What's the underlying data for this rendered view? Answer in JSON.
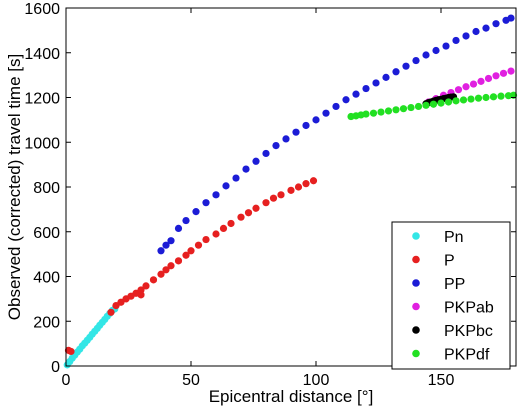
{
  "chart_data": {
    "type": "scatter",
    "xlabel": "Epicentral distance [°]",
    "ylabel": "Observed (corrected) travel time [s]",
    "xlim": [
      0,
      180
    ],
    "ylim": [
      0,
      1600
    ],
    "xticks": [
      0,
      50,
      100,
      150
    ],
    "yticks": [
      0,
      200,
      400,
      600,
      800,
      1000,
      1200,
      1400,
      1600
    ],
    "grid": false,
    "legend_position": "bottom-right",
    "series": [
      {
        "name": "Pn",
        "color": "#33e6e6",
        "points": [
          [
            0.5,
            5
          ],
          [
            1.5,
            20
          ],
          [
            2.5,
            35
          ],
          [
            3.5,
            48
          ],
          [
            4.5,
            62
          ],
          [
            5.5,
            75
          ],
          [
            6.5,
            90
          ],
          [
            7.5,
            102
          ],
          [
            8.5,
            115
          ],
          [
            9.5,
            128
          ],
          [
            10.5,
            142
          ],
          [
            11.5,
            155
          ],
          [
            12.5,
            168
          ],
          [
            13.5,
            182
          ],
          [
            14.5,
            195
          ],
          [
            15.5,
            208
          ],
          [
            16.5,
            222
          ],
          [
            17.5,
            235
          ],
          [
            18.5,
            248
          ],
          [
            19.5,
            255
          ]
        ]
      },
      {
        "name": "P",
        "color": "#e62020",
        "points": [
          [
            1,
            70
          ],
          [
            2,
            65
          ],
          [
            18,
            240
          ],
          [
            20,
            270
          ],
          [
            22,
            285
          ],
          [
            24,
            300
          ],
          [
            26,
            312
          ],
          [
            28,
            325
          ],
          [
            30,
            340
          ],
          [
            30,
            318
          ],
          [
            32,
            358
          ],
          [
            35,
            385
          ],
          [
            38,
            410
          ],
          [
            40,
            430
          ],
          [
            42,
            448
          ],
          [
            45,
            470
          ],
          [
            48,
            495
          ],
          [
            50,
            515
          ],
          [
            53,
            540
          ],
          [
            56,
            565
          ],
          [
            60,
            590
          ],
          [
            63,
            615
          ],
          [
            66,
            637
          ],
          [
            70,
            665
          ],
          [
            73,
            685
          ],
          [
            76,
            705
          ],
          [
            80,
            730
          ],
          [
            83,
            750
          ],
          [
            86,
            765
          ],
          [
            90,
            785
          ],
          [
            93,
            800
          ],
          [
            96,
            815
          ],
          [
            99,
            828
          ]
        ]
      },
      {
        "name": "PP",
        "color": "#1c1cd6",
        "points": [
          [
            38,
            515
          ],
          [
            40,
            540
          ],
          [
            42,
            560
          ],
          [
            45,
            615
          ],
          [
            48,
            650
          ],
          [
            52,
            690
          ],
          [
            56,
            730
          ],
          [
            60,
            765
          ],
          [
            64,
            805
          ],
          [
            68,
            840
          ],
          [
            72,
            880
          ],
          [
            76,
            915
          ],
          [
            80,
            950
          ],
          [
            84,
            985
          ],
          [
            88,
            1015
          ],
          [
            92,
            1045
          ],
          [
            96,
            1075
          ],
          [
            100,
            1100
          ],
          [
            104,
            1130
          ],
          [
            108,
            1160
          ],
          [
            112,
            1190
          ],
          [
            116,
            1215
          ],
          [
            120,
            1240
          ],
          [
            124,
            1265
          ],
          [
            128,
            1290
          ],
          [
            132,
            1315
          ],
          [
            136,
            1340
          ],
          [
            140,
            1365
          ],
          [
            144,
            1390
          ],
          [
            148,
            1410
          ],
          [
            152,
            1430
          ],
          [
            156,
            1455
          ],
          [
            160,
            1475
          ],
          [
            164,
            1495
          ],
          [
            168,
            1510
          ],
          [
            172,
            1530
          ],
          [
            176,
            1545
          ],
          [
            178,
            1555
          ]
        ]
      },
      {
        "name": "PKPab",
        "color": "#e020e0",
        "points": [
          [
            145,
            1180
          ],
          [
            148,
            1195
          ],
          [
            151,
            1210
          ],
          [
            154,
            1222
          ],
          [
            157,
            1235
          ],
          [
            160,
            1248
          ],
          [
            163,
            1260
          ],
          [
            166,
            1272
          ],
          [
            169,
            1285
          ],
          [
            172,
            1297
          ],
          [
            175,
            1308
          ],
          [
            178,
            1318
          ]
        ]
      },
      {
        "name": "PKPbc",
        "color": "#000000",
        "points": [
          [
            144,
            1172
          ],
          [
            145,
            1177
          ],
          [
            146,
            1180
          ],
          [
            147,
            1184
          ],
          [
            148,
            1187
          ],
          [
            149,
            1190
          ],
          [
            150,
            1192
          ],
          [
            151,
            1195
          ],
          [
            152,
            1197
          ],
          [
            153,
            1200
          ],
          [
            154,
            1202
          ],
          [
            155,
            1203
          ]
        ]
      },
      {
        "name": "PKPdf",
        "color": "#22e022",
        "points": [
          [
            114,
            1115
          ],
          [
            116,
            1118
          ],
          [
            118,
            1122
          ],
          [
            120,
            1126
          ],
          [
            123,
            1130
          ],
          [
            126,
            1135
          ],
          [
            129,
            1140
          ],
          [
            132,
            1145
          ],
          [
            135,
            1150
          ],
          [
            138,
            1155
          ],
          [
            141,
            1160
          ],
          [
            144,
            1165
          ],
          [
            147,
            1170
          ],
          [
            150,
            1175
          ],
          [
            153,
            1180
          ],
          [
            156,
            1185
          ],
          [
            159,
            1189
          ],
          [
            162,
            1193
          ],
          [
            165,
            1197
          ],
          [
            168,
            1200
          ],
          [
            171,
            1203
          ],
          [
            174,
            1206
          ],
          [
            177,
            1208
          ],
          [
            179,
            1210
          ]
        ]
      }
    ]
  }
}
